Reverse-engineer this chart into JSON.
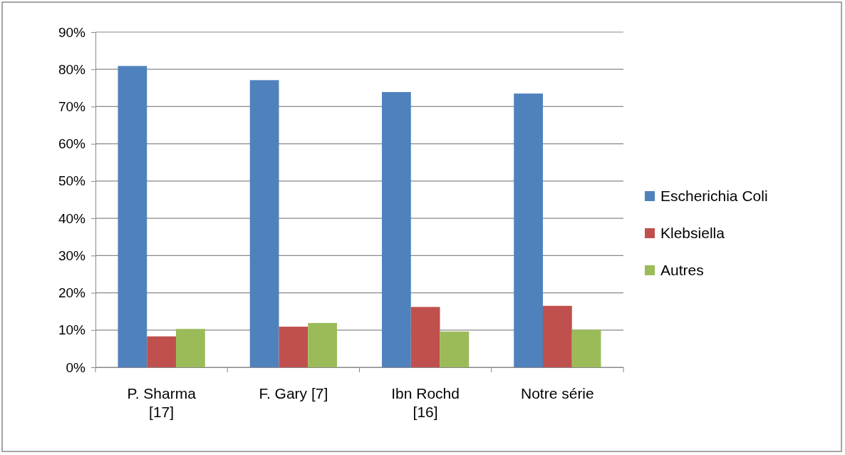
{
  "chart_data": {
    "type": "bar",
    "categories": [
      "P. Sharma [17]",
      "F. Gary [7]",
      "Ibn Rochd [16]",
      "Notre série"
    ],
    "series": [
      {
        "name": "Escherichia Coli",
        "color": "#4f81bd",
        "values": [
          80.9,
          77.1,
          73.9,
          73.5
        ]
      },
      {
        "name": "Klebsiella",
        "color": "#c0504d",
        "values": [
          8.3,
          10.9,
          16.2,
          16.5
        ]
      },
      {
        "name": "Autres",
        "color": "#9bbb59",
        "values": [
          10.3,
          11.9,
          9.6,
          10.1
        ]
      }
    ],
    "ylim": [
      0,
      90
    ],
    "yticks": [
      {
        "value": 0,
        "label": "0%"
      },
      {
        "value": 10,
        "label": "10%"
      },
      {
        "value": 20,
        "label": "20%"
      },
      {
        "value": 30,
        "label": "30%"
      },
      {
        "value": 40,
        "label": "40%"
      },
      {
        "value": 50,
        "label": "50%"
      },
      {
        "value": 60,
        "label": "60%"
      },
      {
        "value": 70,
        "label": "70%"
      },
      {
        "value": 80,
        "label": "80%"
      },
      {
        "value": 90,
        "label": "90%"
      }
    ],
    "grid": "y",
    "legend": "right"
  }
}
